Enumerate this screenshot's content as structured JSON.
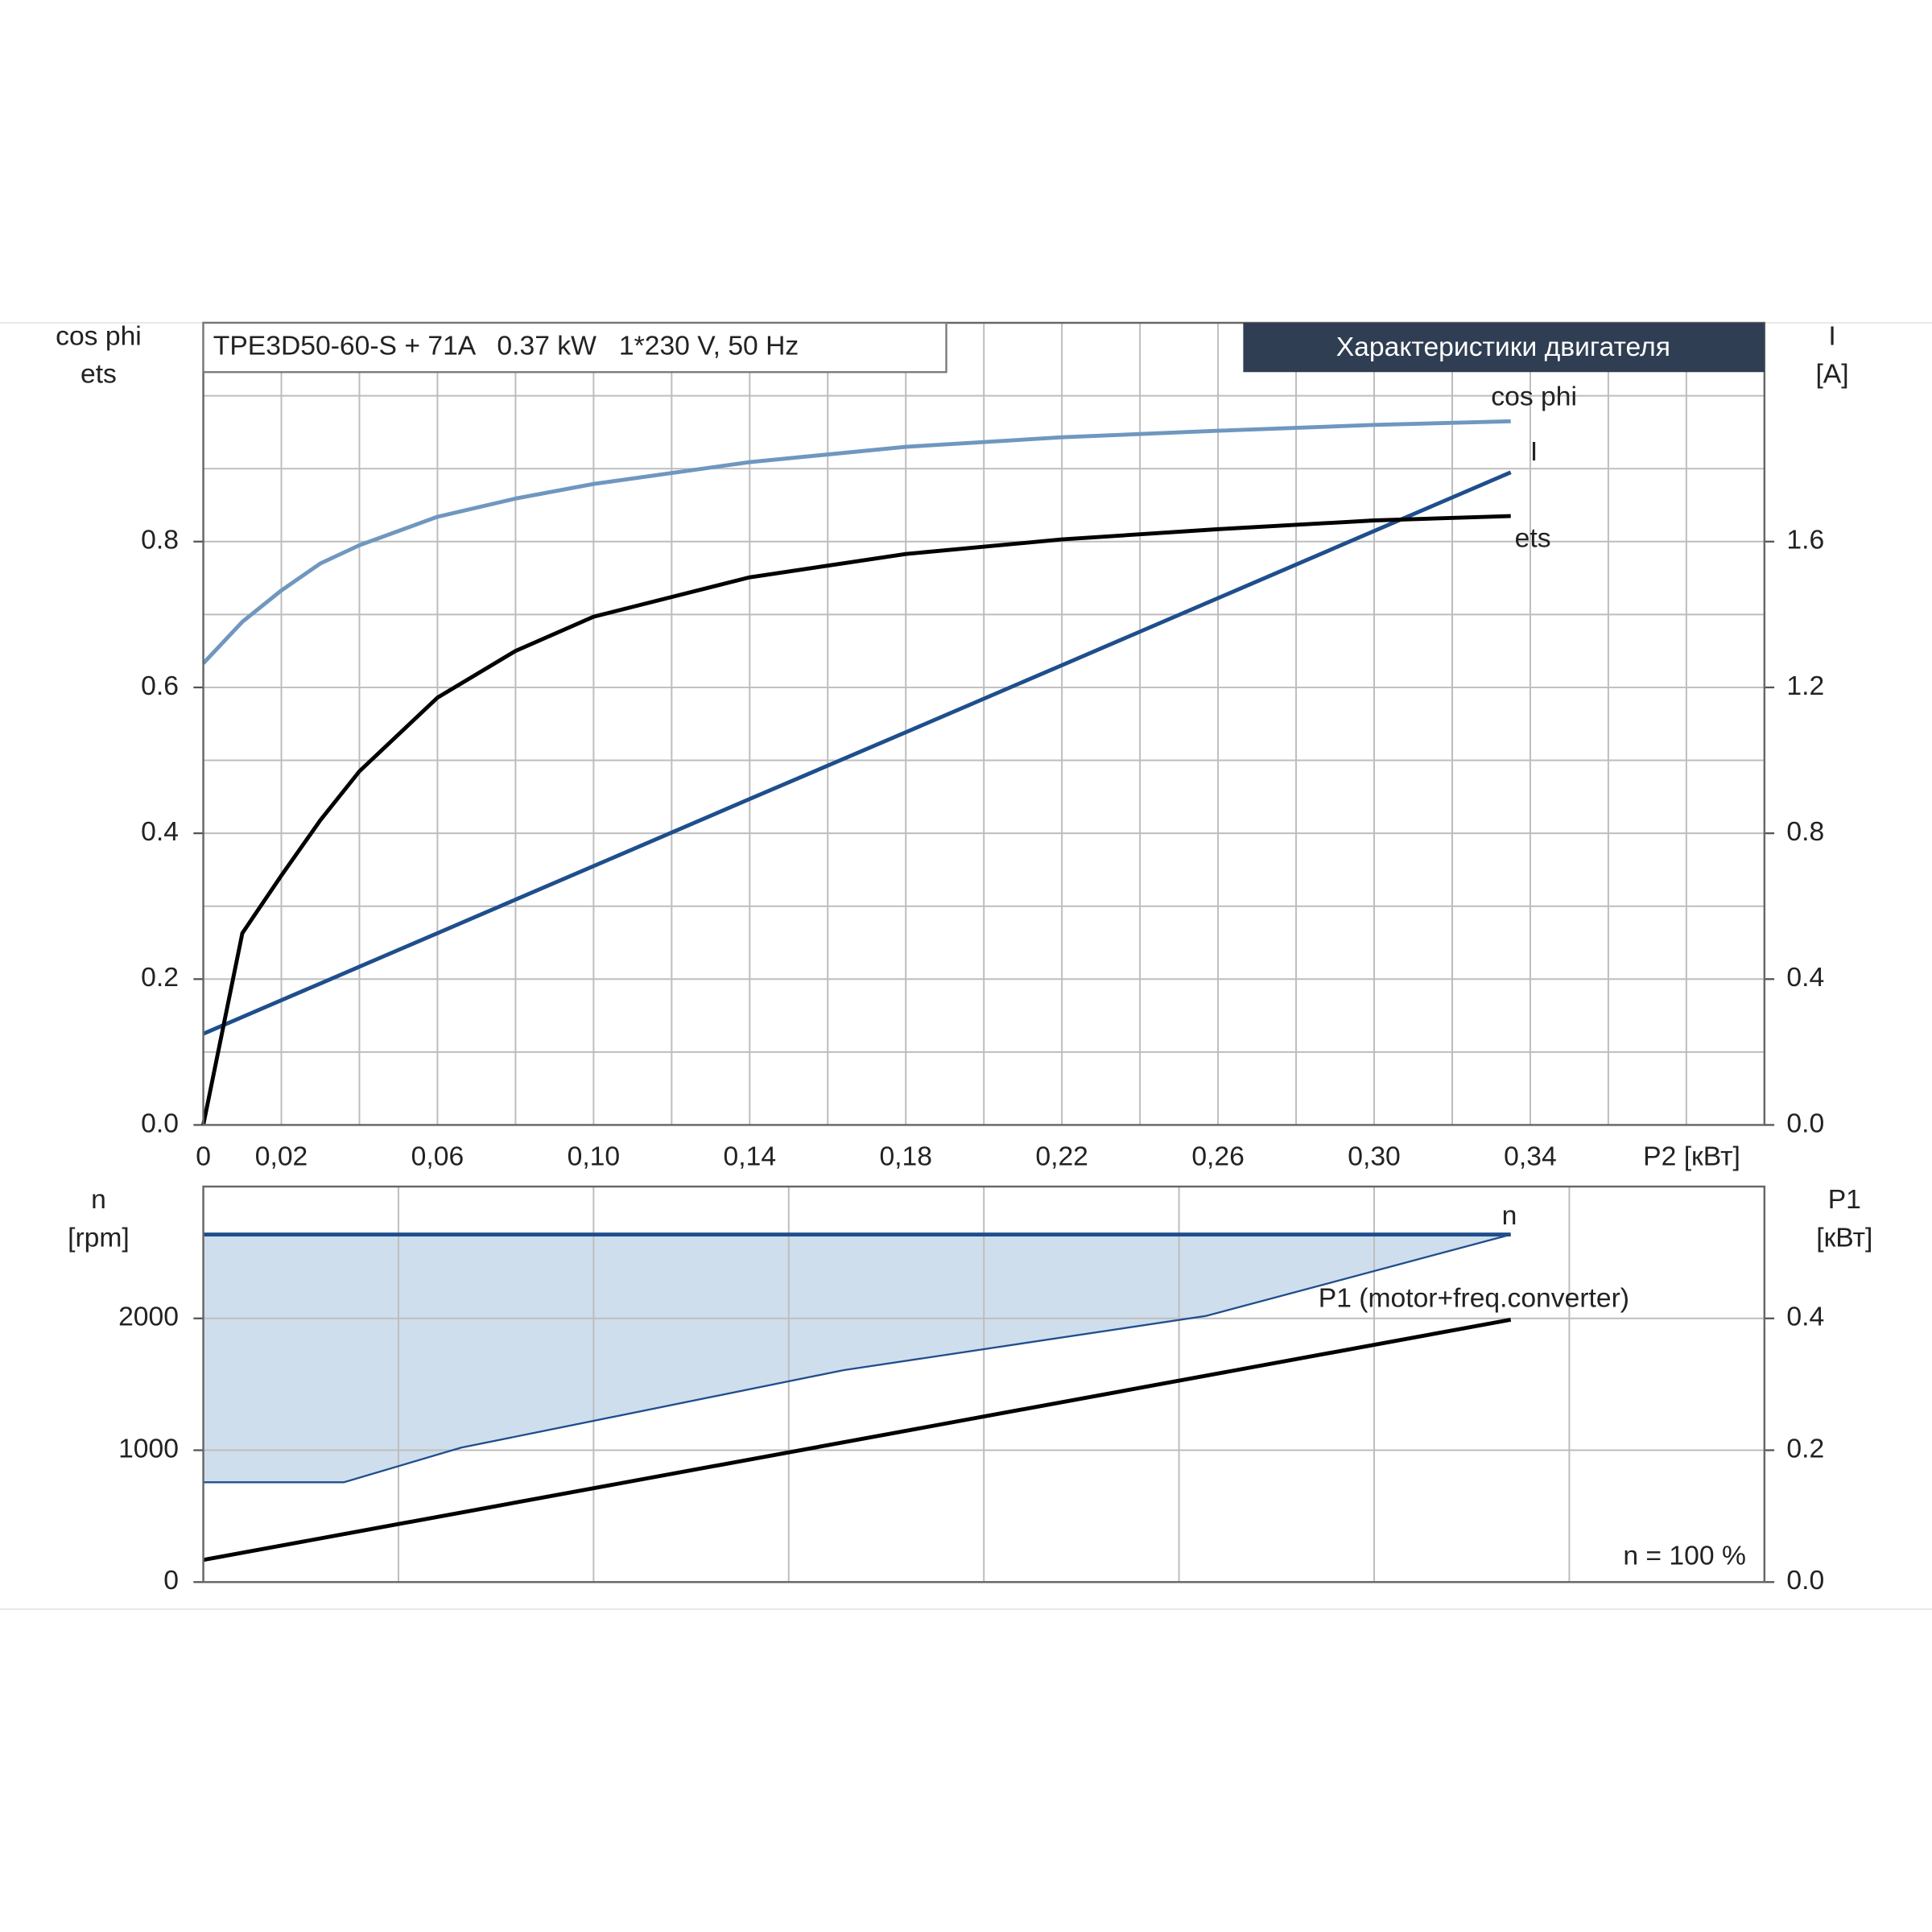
{
  "chart_data": [
    {
      "type": "line",
      "title": "Характеристики двигателя",
      "subtitle": "TPE3D50-60-S + 71A   0.37 kW   1*230 V, 50 Hz",
      "ylabel_lines": [
        "cos phi",
        "ets"
      ],
      "y2label_lines": [
        "I",
        "[A]"
      ],
      "xlabel": "P2 [кВт]",
      "x": [
        0,
        0.01,
        0.02,
        0.03,
        0.04,
        0.06,
        0.08,
        0.1,
        0.14,
        0.18,
        0.22,
        0.26,
        0.3,
        0.335
      ],
      "series": [
        {
          "name": "cos phi",
          "color": "#6f97bf",
          "values": [
            0.633,
            0.69,
            0.733,
            0.77,
            0.795,
            0.834,
            0.859,
            0.879,
            0.909,
            0.93,
            0.943,
            0.952,
            0.96,
            0.965
          ]
        },
        {
          "name": "I",
          "color": "#1f4e8c",
          "axis": "y2",
          "values": [
            0.25,
            0.296,
            0.342,
            0.388,
            0.434,
            0.526,
            0.618,
            0.71,
            0.894,
            1.077,
            1.261,
            1.445,
            1.629,
            1.79
          ]
        },
        {
          "name": "ets",
          "color": "#000000",
          "values": [
            0,
            0.263,
            0.342,
            0.418,
            0.485,
            0.586,
            0.65,
            0.697,
            0.751,
            0.783,
            0.803,
            0.817,
            0.829,
            0.835
          ]
        }
      ],
      "xlim": [
        0,
        0.4
      ],
      "xticks": [
        0,
        {
          "value": 0.02,
          "label": "0,02"
        },
        {
          "value": 0.06,
          "label": "0,06"
        },
        {
          "value": 0.1,
          "label": "0,10"
        },
        {
          "value": 0.14,
          "label": "0,14"
        },
        {
          "value": 0.18,
          "label": "0,18"
        },
        {
          "value": 0.22,
          "label": "0,22"
        },
        {
          "value": 0.26,
          "label": "0,26"
        },
        {
          "value": 0.3,
          "label": "0,30"
        },
        {
          "value": 0.34,
          "label": "0,34"
        }
      ],
      "x_minor_ticks": [
        0.04,
        0.08,
        0.12,
        0.16,
        0.2,
        0.24,
        0.28,
        0.32,
        0.36,
        0.38
      ],
      "ylim": [
        0,
        1.1
      ],
      "yticks": [
        {
          "value": 0,
          "label": "0.0"
        },
        0.2,
        0.4,
        0.6,
        0.8
      ],
      "y_minor_ticks": [
        0.1,
        0.3,
        0.5,
        0.7,
        0.9,
        1.0
      ],
      "y2lim": [
        0,
        2.2
      ],
      "y2ticks": [
        {
          "value": 0,
          "label": "0.0"
        },
        0.4,
        0.8,
        1.2,
        1.6
      ],
      "grid": true
    },
    {
      "type": "line",
      "ylabel_lines": [
        "n",
        "[rpm]"
      ],
      "y2label_lines": [
        "P1",
        "[кВт]"
      ],
      "annotation": "n = 100 %",
      "x": [
        0,
        0.335
      ],
      "series": [
        {
          "name": "n",
          "color": "#1f4e8c",
          "values": [
            2636,
            2636
          ]
        },
        {
          "name": "P1 (motor+freq.converter)",
          "color": "#000000",
          "axis": "y2",
          "values": [
            0.0336,
            0.398
          ]
        }
      ],
      "band": {
        "color": "#cfdeed",
        "x": [
          0,
          0.036,
          0.066,
          0.164,
          0.257,
          0.335
        ],
        "values": [
          757,
          757,
          1019,
          1607,
          2019,
          2636
        ]
      },
      "xlim": [
        0,
        0.4
      ],
      "x_minor_ticks": [
        0.05,
        0.1,
        0.15,
        0.2,
        0.25,
        0.3,
        0.35
      ],
      "ylim": [
        0,
        3000
      ],
      "yticks": [
        0,
        1000,
        2000
      ],
      "y2lim": [
        0,
        0.6
      ],
      "y2ticks": [
        {
          "value": 0,
          "label": "0.0"
        },
        0.2,
        0.4
      ],
      "grid": true
    }
  ]
}
